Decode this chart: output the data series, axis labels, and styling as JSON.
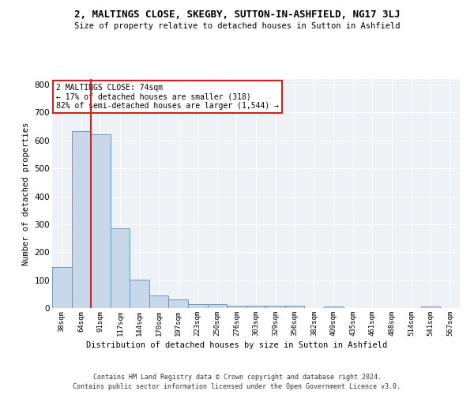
{
  "title": "2, MALTINGS CLOSE, SKEGBY, SUTTON-IN-ASHFIELD, NG17 3LJ",
  "subtitle": "Size of property relative to detached houses in Sutton in Ashfield",
  "xlabel": "Distribution of detached houses by size in Sutton in Ashfield",
  "ylabel": "Number of detached properties",
  "footer_line1": "Contains HM Land Registry data © Crown copyright and database right 2024.",
  "footer_line2": "Contains public sector information licensed under the Open Government Licence v3.0.",
  "annotation_title": "2 MALTINGS CLOSE: 74sqm",
  "annotation_line2": "← 17% of detached houses are smaller (318)",
  "annotation_line3": "82% of semi-detached houses are larger (1,544) →",
  "bar_color": "#c8d8ea",
  "bar_edge_color": "#6699bb",
  "vline_color": "#cc2222",
  "background_color": "#eef2f7",
  "categories": [
    "38sqm",
    "64sqm",
    "91sqm",
    "117sqm",
    "144sqm",
    "170sqm",
    "197sqm",
    "223sqm",
    "250sqm",
    "276sqm",
    "303sqm",
    "329sqm",
    "356sqm",
    "382sqm",
    "409sqm",
    "435sqm",
    "461sqm",
    "488sqm",
    "514sqm",
    "541sqm",
    "567sqm"
  ],
  "values": [
    148,
    632,
    622,
    287,
    101,
    44,
    30,
    13,
    13,
    8,
    9,
    9,
    8,
    0,
    7,
    0,
    0,
    0,
    0,
    7,
    0
  ],
  "ylim": [
    0,
    820
  ],
  "yticks": [
    0,
    100,
    200,
    300,
    400,
    500,
    600,
    700,
    800
  ],
  "vline_x": 1.5
}
